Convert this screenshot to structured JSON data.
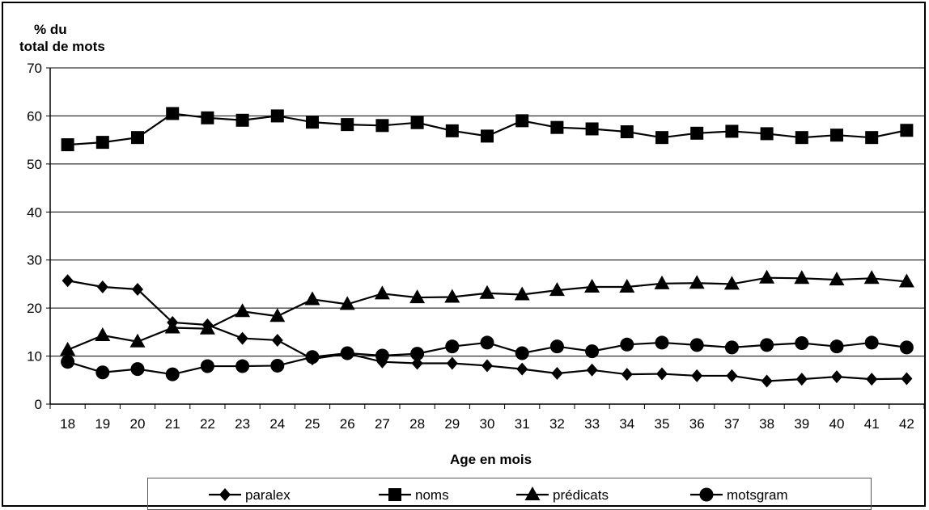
{
  "chart_data": {
    "type": "line",
    "ylabel_lines": [
      "% du",
      "total de mots"
    ],
    "xlabel": "Age en mois",
    "x": [
      18,
      19,
      20,
      21,
      22,
      23,
      24,
      25,
      26,
      27,
      28,
      29,
      30,
      31,
      32,
      33,
      34,
      35,
      36,
      37,
      38,
      39,
      40,
      41,
      42
    ],
    "ylim": [
      0,
      70
    ],
    "yticks": [
      0,
      10,
      20,
      30,
      40,
      50,
      60,
      70
    ],
    "grid": true,
    "legend_position": "bottom",
    "series": [
      {
        "name": "paralex",
        "marker": "diamond",
        "values": [
          25.7,
          24.4,
          23.9,
          17.0,
          16.5,
          13.7,
          13.3,
          9.4,
          10.5,
          8.8,
          8.5,
          8.5,
          8.0,
          7.3,
          6.4,
          7.1,
          6.2,
          6.3,
          5.9,
          5.9,
          4.8,
          5.2,
          5.7,
          5.2,
          5.3
        ]
      },
      {
        "name": "noms",
        "marker": "square",
        "values": [
          54.0,
          54.5,
          55.5,
          60.5,
          59.6,
          59.1,
          60.0,
          58.7,
          58.2,
          58.0,
          58.6,
          56.9,
          55.8,
          59.0,
          57.6,
          57.3,
          56.7,
          55.5,
          56.4,
          56.8,
          56.3,
          55.5,
          56.0,
          55.5,
          57.0
        ]
      },
      {
        "name": "prédicats",
        "marker": "triangle",
        "values": [
          11.3,
          14.3,
          13.0,
          15.9,
          15.7,
          19.3,
          18.3,
          21.8,
          20.8,
          23.0,
          22.2,
          22.3,
          23.1,
          22.8,
          23.7,
          24.4,
          24.4,
          25.1,
          25.2,
          25.0,
          26.3,
          26.2,
          25.9,
          26.2,
          25.5
        ]
      },
      {
        "name": "motsgram",
        "marker": "circle",
        "values": [
          8.8,
          6.6,
          7.3,
          6.2,
          7.9,
          7.9,
          8.0,
          9.8,
          10.6,
          10.1,
          10.5,
          12.0,
          12.8,
          10.6,
          12.0,
          11.0,
          12.4,
          12.8,
          12.3,
          11.8,
          12.3,
          12.7,
          12.0,
          12.8,
          11.8
        ]
      }
    ]
  }
}
